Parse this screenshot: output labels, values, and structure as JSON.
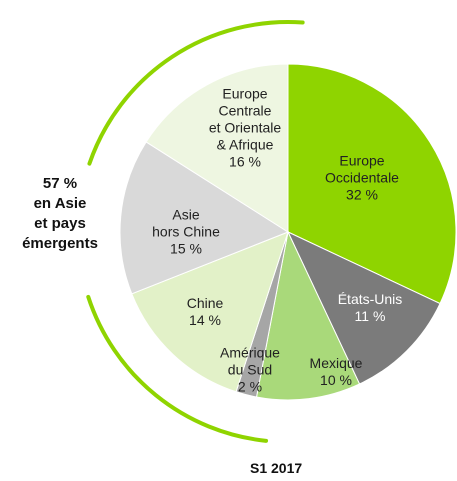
{
  "chart_data": {
    "type": "pie",
    "categories": [
      "Europe\nOccidentale",
      "États-Unis",
      "Mexique",
      "Amérique\ndu Sud",
      "Chine",
      "Asie\nhors Chine",
      "Europe\nCentrale\net Orientale\n& Afrique"
    ],
    "values": [
      32,
      11,
      10,
      2,
      14,
      15,
      16
    ],
    "value_labels": [
      "32 %",
      "11 %",
      "10 %",
      "2 %",
      "14 %",
      "15 %",
      "16 %"
    ],
    "colors": [
      "#8fd400",
      "#7b7b7b",
      "#a9d97a",
      "#a6a6a6",
      "#e2f1c8",
      "#d9d9d9",
      "#eef6e1"
    ],
    "annotation": "57 %\nen Asie\net pays\némergents",
    "title": "S1 2017"
  }
}
